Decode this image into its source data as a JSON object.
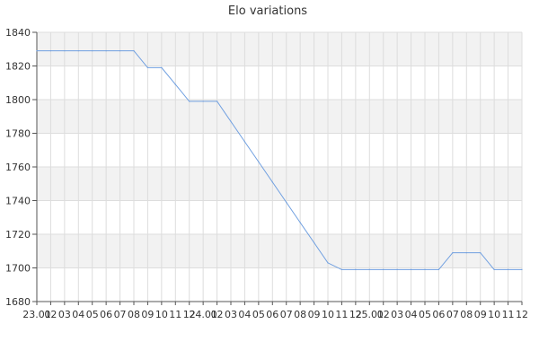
{
  "chart_data": {
    "type": "line",
    "title": "Elo variations",
    "xlabel": "",
    "ylabel": "",
    "ylim": [
      1680,
      1840
    ],
    "y_ticks": [
      1680,
      1700,
      1720,
      1740,
      1760,
      1780,
      1800,
      1820,
      1840
    ],
    "grid": true,
    "legend": "none",
    "colors": {
      "line": "#6f9fe0",
      "band": "#f2f2f2",
      "grid": "#dddddd",
      "axis": "#555555"
    },
    "x_tick_labels": [
      "23.01",
      "02",
      "03",
      "04",
      "05",
      "06",
      "07",
      "08",
      "09",
      "10",
      "11",
      "12",
      "24.01",
      "02",
      "03",
      "04",
      "05",
      "06",
      "07",
      "08",
      "09",
      "10",
      "11",
      "12",
      "25.01",
      "02",
      "03",
      "04",
      "05",
      "06",
      "07",
      "08",
      "09",
      "10",
      "11",
      "12"
    ],
    "x": [
      "23.01",
      "02",
      "03",
      "04",
      "05",
      "06",
      "07",
      "08",
      "09",
      "10",
      "11",
      "12",
      "24.01",
      "02",
      "03",
      "04",
      "05",
      "06",
      "07",
      "08",
      "09",
      "10",
      "11",
      "12",
      "25.01",
      "02",
      "03",
      "04",
      "05",
      "06",
      "07",
      "08",
      "09",
      "10",
      "11",
      "12"
    ],
    "series": [
      {
        "name": "",
        "values": [
          1829,
          1829,
          1829,
          1829,
          1829,
          1829,
          1829,
          1829,
          1819,
          1819,
          1809,
          1799,
          1799,
          1799,
          1787,
          1775,
          1763,
          1751,
          1739,
          1727,
          1715,
          1703,
          1699,
          1699,
          1699,
          1699,
          1699,
          1699,
          1699,
          1699,
          1709,
          1709,
          1709,
          1699,
          1699,
          1699
        ]
      }
    ]
  }
}
